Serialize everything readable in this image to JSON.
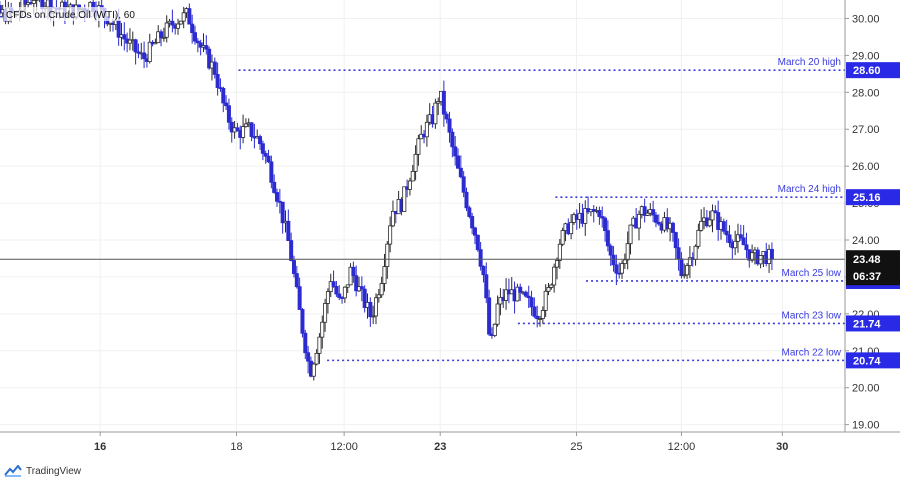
{
  "chart_data": {
    "type": "candlestick",
    "title": "CFDs on Crude Oil (WTI), 60",
    "ylim": [
      18.8,
      30.5
    ],
    "yticks": [
      "19.00",
      "20.00",
      "21.00",
      "22.00",
      "23.00",
      "24.00",
      "25.00",
      "26.00",
      "27.00",
      "28.00",
      "29.00",
      "30.00"
    ],
    "xticks": [
      {
        "label": "16",
        "bold": true,
        "t": 0.97
      },
      {
        "label": "18",
        "bold": false,
        "t": 2.97
      },
      {
        "label": "12:00",
        "bold": false,
        "t": 4.55
      },
      {
        "label": "23",
        "bold": true,
        "t": 5.96
      },
      {
        "label": "25",
        "bold": false,
        "t": 7.96
      },
      {
        "label": "12:00",
        "bold": false,
        "t": 9.5
      },
      {
        "label": "30",
        "bold": true,
        "t": 10.98
      }
    ],
    "current_price": {
      "value": 23.48,
      "label": "23.48",
      "countdown": "06:37"
    },
    "levels": [
      {
        "name": "March 20 high",
        "value": 28.6,
        "label": "28.60"
      },
      {
        "name": "March 24 high",
        "value": 25.16,
        "label": "25.16"
      },
      {
        "name": "March 25 low",
        "value": 22.89,
        "label": "22.89"
      },
      {
        "name": "March 23 low",
        "value": 21.74,
        "label": "21.74"
      },
      {
        "name": "March 22 low",
        "value": 20.74,
        "label": "20.74"
      }
    ],
    "prior_level": {
      "value": 30.05
    },
    "price_path": [
      [
        -1.0,
        30.2
      ],
      [
        -0.3,
        30.1
      ],
      [
        0.0,
        30.6
      ],
      [
        0.3,
        30.3
      ],
      [
        0.6,
        30.2
      ],
      [
        0.85,
        30.4
      ],
      [
        1.1,
        30.0
      ],
      [
        1.35,
        29.4
      ],
      [
        1.6,
        28.9
      ],
      [
        1.85,
        29.5
      ],
      [
        2.05,
        29.9
      ],
      [
        2.25,
        30.1
      ],
      [
        2.45,
        29.2
      ],
      [
        2.65,
        28.6
      ],
      [
        2.8,
        27.5
      ],
      [
        2.95,
        26.9
      ],
      [
        3.15,
        27.0
      ],
      [
        3.3,
        26.7
      ],
      [
        3.45,
        26.0
      ],
      [
        3.6,
        25.0
      ],
      [
        3.75,
        23.8
      ],
      [
        3.9,
        22.0
      ],
      [
        4.05,
        20.4
      ],
      [
        4.2,
        21.5
      ],
      [
        4.35,
        23.0
      ],
      [
        4.5,
        22.2
      ],
      [
        4.65,
        23.2
      ],
      [
        4.8,
        22.5
      ],
      [
        4.95,
        21.9
      ],
      [
        5.1,
        23.0
      ],
      [
        5.25,
        24.8
      ],
      [
        5.4,
        25.0
      ],
      [
        5.55,
        26.0
      ],
      [
        5.7,
        26.9
      ],
      [
        5.85,
        27.3
      ],
      [
        5.95,
        28.0
      ],
      [
        6.05,
        27.2
      ],
      [
        6.2,
        26.0
      ],
      [
        6.35,
        25.0
      ],
      [
        6.5,
        24.0
      ],
      [
        6.6,
        23.0
      ],
      [
        6.7,
        21.0
      ],
      [
        6.8,
        22.2
      ],
      [
        6.95,
        22.6
      ],
      [
        7.1,
        22.5
      ],
      [
        7.25,
        22.3
      ],
      [
        7.4,
        22.0
      ],
      [
        7.55,
        22.6
      ],
      [
        7.7,
        23.9
      ],
      [
        7.85,
        24.4
      ],
      [
        8.0,
        24.6
      ],
      [
        8.15,
        24.7
      ],
      [
        8.3,
        24.8
      ],
      [
        8.45,
        23.6
      ],
      [
        8.6,
        23.1
      ],
      [
        8.75,
        24.2
      ],
      [
        8.9,
        24.8
      ],
      [
        9.05,
        24.7
      ],
      [
        9.2,
        24.5
      ],
      [
        9.35,
        24.2
      ],
      [
        9.5,
        23.1
      ],
      [
        9.65,
        23.6
      ],
      [
        9.8,
        24.5
      ],
      [
        9.95,
        24.7
      ],
      [
        10.1,
        24.3
      ],
      [
        10.25,
        24.0
      ],
      [
        10.4,
        23.9
      ],
      [
        10.55,
        23.5
      ],
      [
        10.7,
        23.6
      ],
      [
        10.85,
        23.48
      ]
    ]
  },
  "branding": {
    "logo_text": "TradingView"
  },
  "colors": {
    "up": "#2a2a2a",
    "down": "#2b2bd0",
    "level": "#3a3ae0",
    "tag": "#2a2ae6",
    "price_tag": "#111111"
  }
}
